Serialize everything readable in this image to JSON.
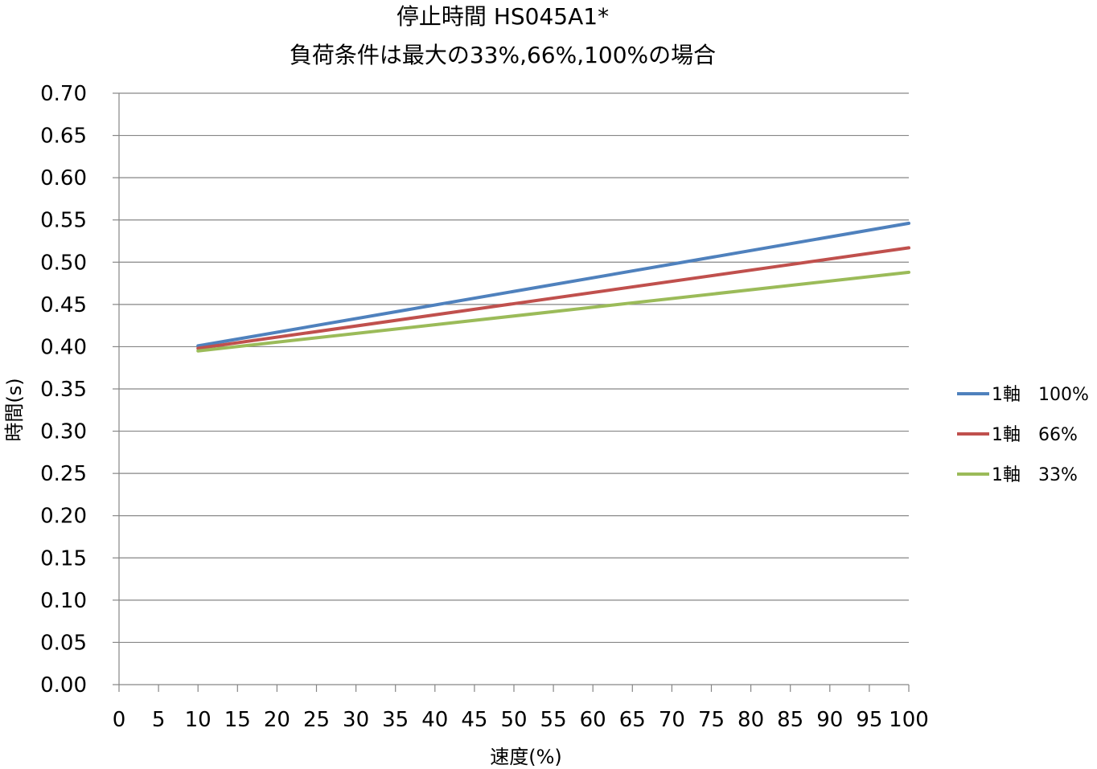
{
  "chart_data": {
    "type": "line",
    "title": "停止時間 HS045A1*",
    "subtitle": "負荷条件は最大の33%,66%,100%の場合",
    "xlabel": "速度(%)",
    "ylabel": "時間(s)",
    "xlim": [
      0,
      100
    ],
    "ylim": [
      0,
      0.7
    ],
    "x_ticks": [
      "0",
      "5",
      "10",
      "15",
      "20",
      "25",
      "30",
      "35",
      "40",
      "45",
      "50",
      "55",
      "60",
      "65",
      "70",
      "75",
      "80",
      "85",
      "90",
      "95",
      "100"
    ],
    "y_ticks": [
      "0.00",
      "0.05",
      "0.10",
      "0.15",
      "0.20",
      "0.25",
      "0.30",
      "0.35",
      "0.40",
      "0.45",
      "0.50",
      "0.55",
      "0.60",
      "0.65",
      "0.70"
    ],
    "grid": true,
    "legend_position": "right",
    "series": [
      {
        "name": "1軸　100%",
        "color": "#4f81bd",
        "x": [
          10,
          100
        ],
        "y": [
          0.401,
          0.546
        ]
      },
      {
        "name": "1軸　66%",
        "color": "#c0504d",
        "x": [
          10,
          100
        ],
        "y": [
          0.398,
          0.517
        ]
      },
      {
        "name": "1軸　33%",
        "color": "#9bbb59",
        "x": [
          10,
          100
        ],
        "y": [
          0.395,
          0.488
        ]
      }
    ]
  }
}
